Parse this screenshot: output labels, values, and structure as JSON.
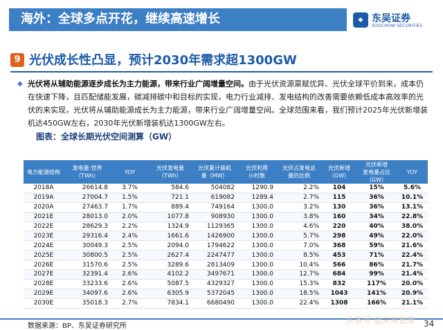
{
  "header": {
    "title": "海外：全球多点开花，继续高速增长"
  },
  "logo": {
    "mark": "SOOCHOW",
    "cn": "东吴证券",
    "en": "SOOCHOW SECURITIES"
  },
  "section": {
    "number": "9",
    "title": "光伏成长性凸显，预计2030年需求超1300GW"
  },
  "paragraph": {
    "bold": "光伏将从辅助能源逐步成长为主力能源，带来行业广阔增量空间。",
    "text": "由于光伏资源禀赋优异、光伏全球平价到来，成本仍在快速下降，且匹配储能发展，碳减排碳中和目标的实现，电力行业减排、发电结构的改善需要依赖低成本高效率的光伏的来实现，光伏将从辅助能源成长为主力能源，带来行业广阔增量空间。全球范围来看，我们预计2025年光伏新增装机达450GW左右，2030年光伏新增装机达1300GW左右。"
  },
  "table": {
    "title": "图表：全球长期光伏空间测算（GW）",
    "headers": [
      "电力能源结构",
      "发电量:世界\n（TWh）",
      "YOY",
      "光伏发电量\n（TWh）",
      "光伏累计装机\n量（MW）",
      "光伏利用\n小时数",
      "光伏占发电总\n量的比例",
      "光伏新增\n（GW）",
      "光伏新增\n发电量占比\n（GW）",
      "YOY"
    ],
    "rows": [
      [
        "2018A",
        "26614.8",
        "3.7%",
        "584.6",
        "504082",
        "1290.9",
        "2.2%",
        "104",
        "15%",
        "5.6%"
      ],
      [
        "2019A",
        "27004.7",
        "1.5%",
        "721.1",
        "619082",
        "1289.4",
        "2.7%",
        "115",
        "36%",
        "10.1%"
      ],
      [
        "2020A",
        "27463.7",
        "1.7%",
        "889.4",
        "749164",
        "1300.0",
        "3.2%",
        "130",
        "36%",
        "13.1%"
      ],
      [
        "2021E",
        "28013.0",
        "2.0%",
        "1077.8",
        "908930",
        "1300.0",
        "3.8%",
        "160",
        "34%",
        "22.8%"
      ],
      [
        "2022E",
        "28629.3",
        "2.2%",
        "1324.9",
        "1129365",
        "1300.0",
        "4.6%",
        "220",
        "40%",
        "38.0%"
      ],
      [
        "2023E",
        "29316.4",
        "2.4%",
        "1661.6",
        "1426900",
        "1300.0",
        "5.7%",
        "298",
        "49%",
        "22.0%"
      ],
      [
        "2024E",
        "30049.3",
        "2.5%",
        "2094.0",
        "1794622",
        "1300.0",
        "7.0%",
        "368",
        "59%",
        "21.6%"
      ],
      [
        "2025E",
        "30800.5",
        "2.5%",
        "2627.4",
        "2247477",
        "1300.0",
        "8.5%",
        "453",
        "71%",
        "22.4%"
      ],
      [
        "2026E",
        "31570.6",
        "2.5%",
        "3289.6",
        "2813409",
        "1300.0",
        "10.4%",
        "566",
        "86%",
        "21.7%"
      ],
      [
        "2027E",
        "32391.4",
        "2.6%",
        "4102.2",
        "3497671",
        "1300.0",
        "12.7%",
        "684",
        "99%",
        "21.4%"
      ],
      [
        "2028E",
        "33233.6",
        "2.6%",
        "5087.5",
        "4329327",
        "1300.0",
        "15.3%",
        "832",
        "117%",
        "20.0%"
      ],
      [
        "2029E",
        "34097.6",
        "2.6%",
        "6305.9",
        "5372045",
        "1300.0",
        "18.5%",
        "1043",
        "141%",
        "20.9%"
      ],
      [
        "2030E",
        "35018.3",
        "2.7%",
        "7834.1",
        "6680490",
        "1300.0",
        "22.4%",
        "1308",
        "166%",
        "21.1%"
      ]
    ]
  },
  "footer": {
    "source": "数据来源：BP、东吴证券研究所",
    "page": "34",
    "watermark": "头条号 @未来智库"
  },
  "colors": {
    "brand": "#1d5aa8",
    "header_bar": "#3d7fc4",
    "accent": "#e0621a"
  }
}
